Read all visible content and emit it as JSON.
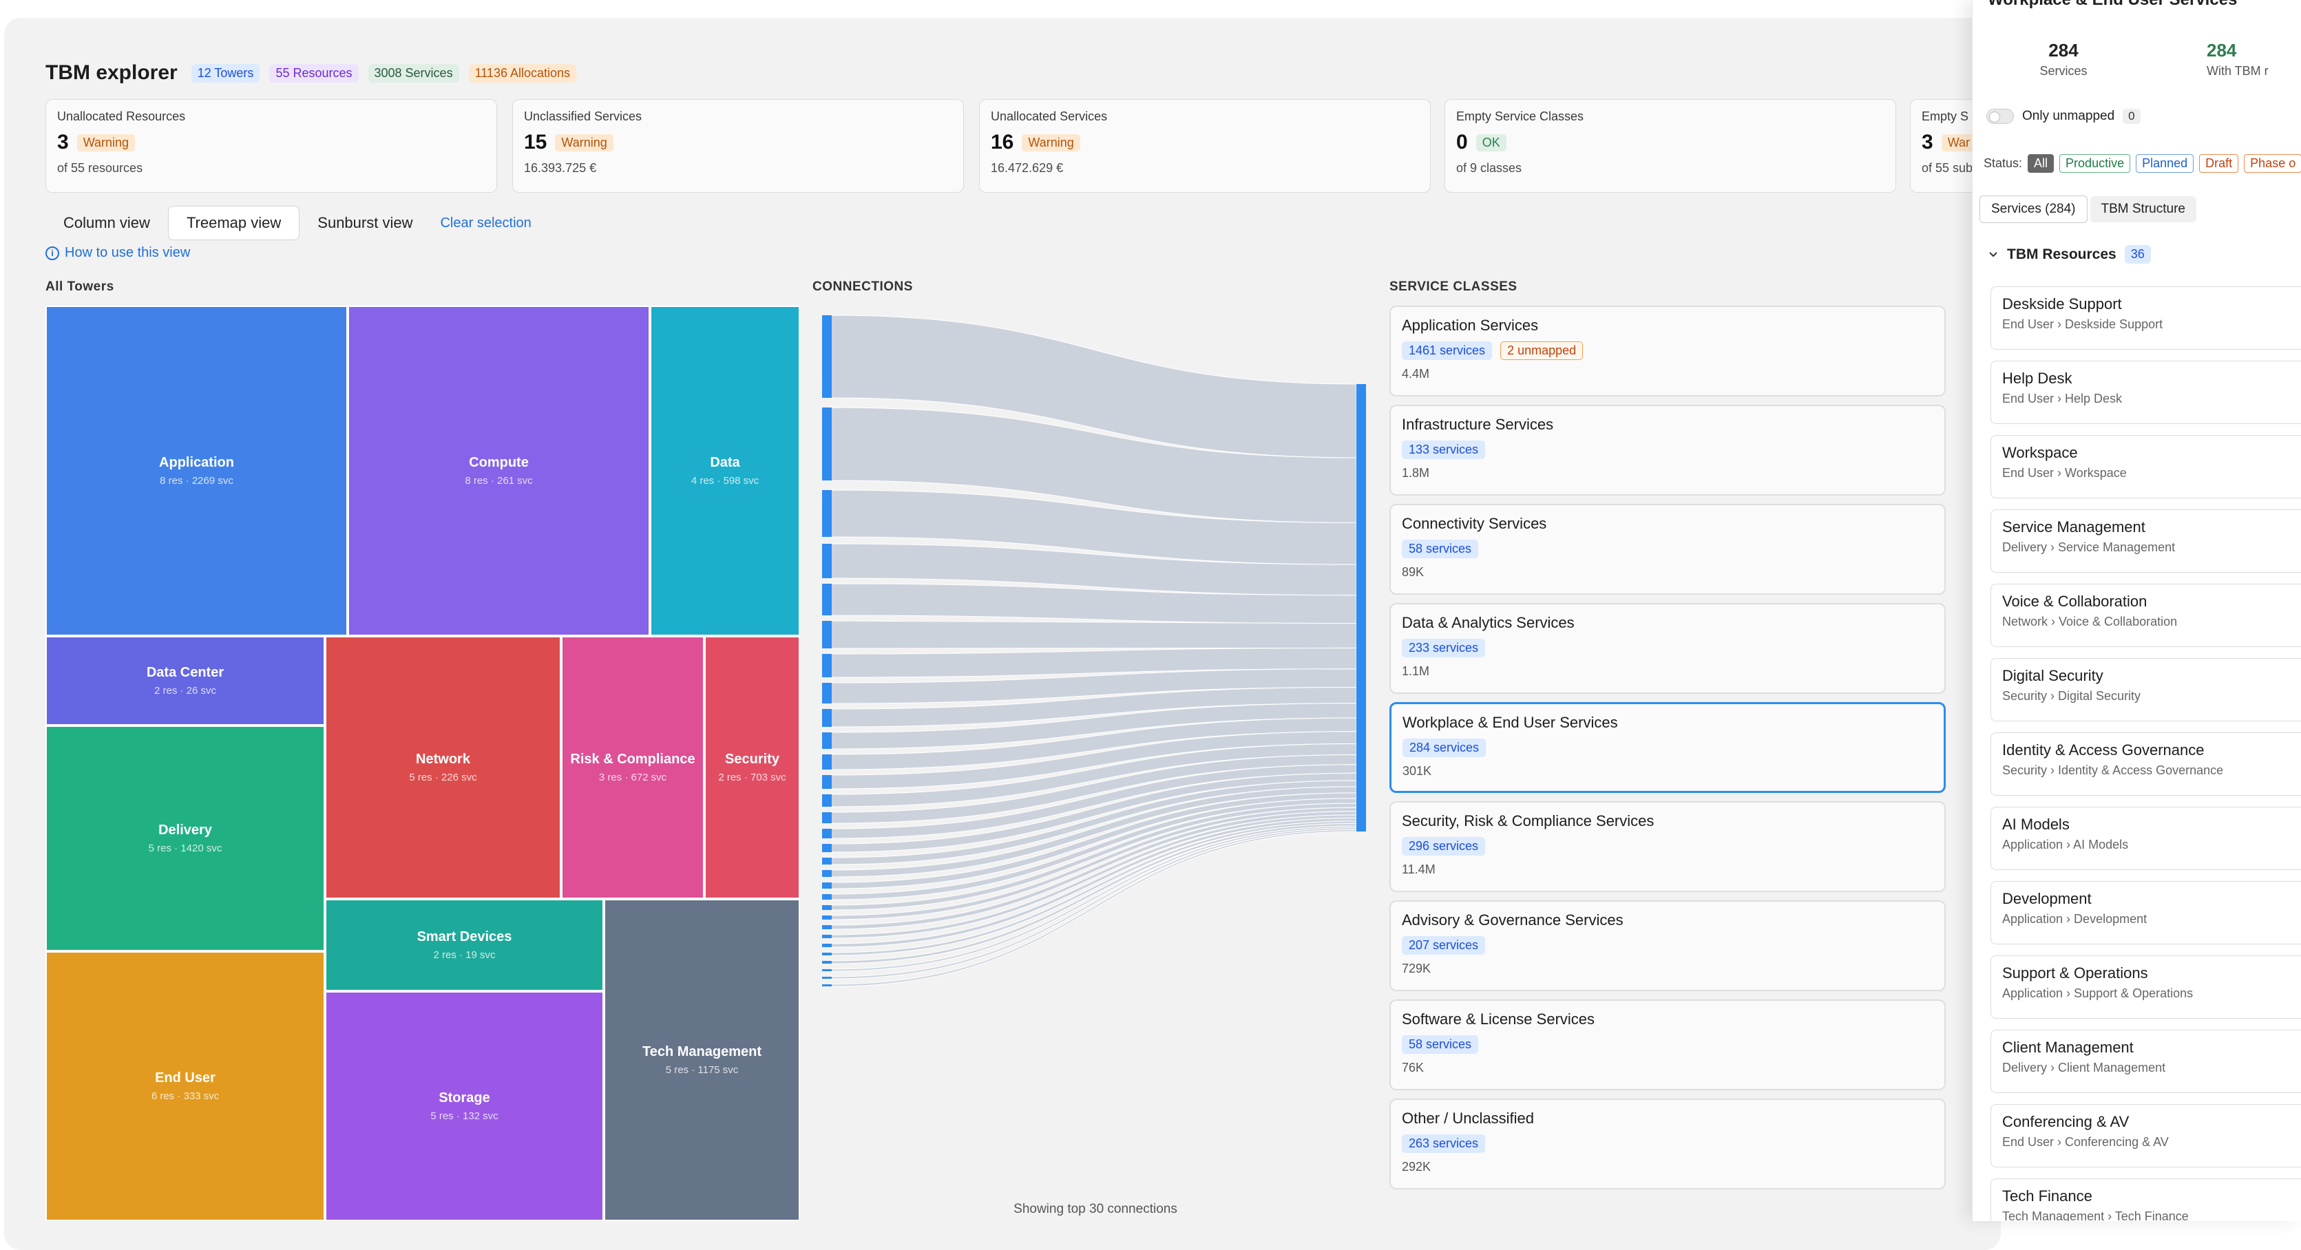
{
  "header": {
    "title": "TBM explorer",
    "chips": [
      "12 Towers",
      "55 Resources",
      "3008 Services",
      "11136 Allocations"
    ]
  },
  "stats": [
    {
      "label": "Unallocated Resources",
      "value": "3",
      "badge": "Warning",
      "sub": "of 55 resources"
    },
    {
      "label": "Unclassified Services",
      "value": "15",
      "badge": "Warning",
      "sub": "16.393.725 €"
    },
    {
      "label": "Unallocated Services",
      "value": "16",
      "badge": "Warning",
      "sub": "16.472.629 €"
    },
    {
      "label": "Empty Service Classes",
      "value": "0",
      "badge": "OK",
      "sub": "of 9 classes"
    },
    {
      "label": "Empty S",
      "value": "3",
      "badge": "War",
      "sub": "of 55 sub"
    }
  ],
  "view_tabs": [
    "Column view",
    "Treemap view",
    "Sunburst view"
  ],
  "active_view": "Treemap view",
  "clear_selection": "Clear selection",
  "howto": "How to use this view",
  "section_labels": {
    "towers": "All Towers",
    "connections": "CONNECTIONS",
    "classes": "SERVICE CLASSES"
  },
  "towers": [
    {
      "name": "Application",
      "sub": "8 res · 2269 svc",
      "color": "#4282e8"
    },
    {
      "name": "Compute",
      "sub": "8 res · 261 svc",
      "color": "#8663e8"
    },
    {
      "name": "Data",
      "sub": "4 res · 598 svc",
      "color": "#1caecb"
    },
    {
      "name": "Data Center",
      "sub": "2 res · 26 svc",
      "color": "#6466e2"
    },
    {
      "name": "Network",
      "sub": "5 res · 226 svc",
      "color": "#dc4c4c"
    },
    {
      "name": "Risk & Compliance",
      "sub": "3 res · 672 svc",
      "color": "#de4f96"
    },
    {
      "name": "Security",
      "sub": "2 res · 703 svc",
      "color": "#e14e64"
    },
    {
      "name": "Delivery",
      "sub": "5 res · 1420 svc",
      "color": "#21b084"
    },
    {
      "name": "Smart Devices",
      "sub": "2 res · 19 svc",
      "color": "#1eaa9a"
    },
    {
      "name": "Tech Management",
      "sub": "5 res · 1175 svc",
      "color": "#66748a"
    },
    {
      "name": "End User",
      "sub": "6 res · 333 svc",
      "color": "#e29b20"
    },
    {
      "name": "Storage",
      "sub": "5 res · 132 svc",
      "color": "#9b58e6"
    }
  ],
  "connections_footer": "Showing top 30 connections",
  "service_classes": [
    {
      "name": "Application Services",
      "services": "1461 services",
      "unmapped": "2 unmapped",
      "cost": "4.4M"
    },
    {
      "name": "Infrastructure Services",
      "services": "133 services",
      "cost": "1.8M"
    },
    {
      "name": "Connectivity Services",
      "services": "58 services",
      "cost": "89K"
    },
    {
      "name": "Data & Analytics Services",
      "services": "233 services",
      "cost": "1.1M"
    },
    {
      "name": "Workplace & End User Services",
      "services": "284 services",
      "cost": "301K",
      "selected": true
    },
    {
      "name": "Security, Risk & Compliance Services",
      "services": "296 services",
      "cost": "11.4M"
    },
    {
      "name": "Advisory & Governance Services",
      "services": "207 services",
      "cost": "729K"
    },
    {
      "name": "Software & License Services",
      "services": "58 services",
      "cost": "76K"
    },
    {
      "name": "Other / Unclassified",
      "services": "263 services",
      "cost": "292K"
    }
  ],
  "panel": {
    "title": "Workplace & End User Services",
    "stat1": {
      "value": "284",
      "label": "Services"
    },
    "stat2": {
      "value": "284",
      "label": "With TBM r"
    },
    "toggle_label": "Only unmapped",
    "toggle_count": "0",
    "status_label": "Status:",
    "statuses": [
      "All",
      "Productive",
      "Planned",
      "Draft",
      "Phase o"
    ],
    "tabs": [
      "Services (284)",
      "TBM Structure"
    ],
    "group_name": "TBM Resources",
    "group_count": "36",
    "cards": [
      {
        "name": "Deskside Support",
        "path": "End User › Deskside Support"
      },
      {
        "name": "Help Desk",
        "path": "End User › Help Desk"
      },
      {
        "name": "Workspace",
        "path": "End User › Workspace"
      },
      {
        "name": "Service Management",
        "path": "Delivery › Service Management"
      },
      {
        "name": "Voice & Collaboration",
        "path": "Network › Voice & Collaboration"
      },
      {
        "name": "Digital Security",
        "path": "Security › Digital Security"
      },
      {
        "name": "Identity & Access Governance",
        "path": "Security › Identity & Access Governance"
      },
      {
        "name": "AI Models",
        "path": "Application › AI Models"
      },
      {
        "name": "Development",
        "path": "Application › Development"
      },
      {
        "name": "Support & Operations",
        "path": "Application › Support & Operations"
      },
      {
        "name": "Client Management",
        "path": "Delivery › Client Management"
      },
      {
        "name": "Conferencing & AV",
        "path": "End User › Conferencing & AV"
      },
      {
        "name": "Tech Finance",
        "path": "Tech Management › Tech Finance"
      }
    ]
  }
}
